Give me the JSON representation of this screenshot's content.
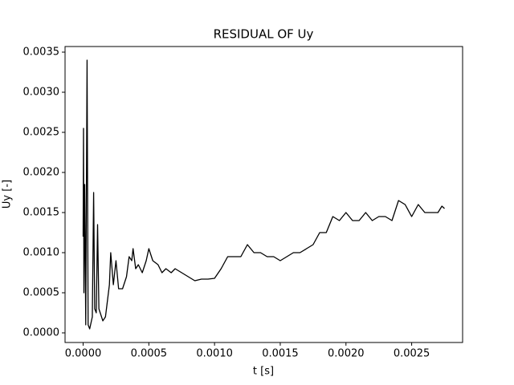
{
  "chart_data": {
    "type": "line",
    "title": "RESIDUAL OF Uy",
    "x_label": "t [s]",
    "y_label": "Uy [-]",
    "color": "#000000",
    "grid": false,
    "x": [
      0,
      3e-06,
      6e-06,
      1.2e-05,
      2e-05,
      3e-05,
      3.8e-05,
      5e-05,
      7e-05,
      8e-05,
      8.8e-05,
      0.0001,
      0.00011,
      0.00012,
      0.00015,
      0.00017,
      0.0002,
      0.00021,
      0.00023,
      0.00025,
      0.00027,
      0.0003,
      0.00033,
      0.00035,
      0.00037,
      0.00038,
      0.0004,
      0.00042,
      0.00045,
      0.00048,
      0.0005,
      0.00053,
      0.00057,
      0.0006,
      0.00063,
      0.00067,
      0.0007,
      0.00075,
      0.0008,
      0.00085,
      0.0009,
      0.00095,
      0.001,
      0.00105,
      0.0011,
      0.00115,
      0.0012,
      0.00125,
      0.0013,
      0.00135,
      0.0014,
      0.00145,
      0.0015,
      0.00155,
      0.0016,
      0.00165,
      0.0017,
      0.00175,
      0.0018,
      0.00185,
      0.0019,
      0.00195,
      0.002,
      0.00205,
      0.0021,
      0.00215,
      0.0022,
      0.00225,
      0.0023,
      0.00235,
      0.0024,
      0.00245,
      0.0025,
      0.00255,
      0.0026,
      0.00265,
      0.0027,
      0.00273,
      0.00275
    ],
    "values": [
      0.0012,
      0.00255,
      0.0005,
      0.00185,
      0.0001,
      0.0034,
      0.0001,
      5e-05,
      0.0002,
      0.00175,
      0.0003,
      0.00025,
      0.00135,
      0.0003,
      0.00015,
      0.0002,
      0.0006,
      0.001,
      0.0006,
      0.0009,
      0.00055,
      0.00055,
      0.0007,
      0.00095,
      0.0009,
      0.00105,
      0.0008,
      0.00085,
      0.00075,
      0.0009,
      0.00105,
      0.0009,
      0.00085,
      0.00075,
      0.0008,
      0.00075,
      0.0008,
      0.00075,
      0.0007,
      0.00065,
      0.00067,
      0.00067,
      0.00068,
      0.0008,
      0.00095,
      0.00095,
      0.00095,
      0.0011,
      0.001,
      0.001,
      0.00095,
      0.00095,
      0.0009,
      0.00095,
      0.001,
      0.001,
      0.00105,
      0.0011,
      0.00125,
      0.00125,
      0.00145,
      0.0014,
      0.0015,
      0.0014,
      0.0014,
      0.0015,
      0.0014,
      0.00145,
      0.00145,
      0.0014,
      0.00165,
      0.0016,
      0.00145,
      0.0016,
      0.0015,
      0.0015,
      0.0015,
      0.00158,
      0.00155
    ],
    "xlim": [
      -0.0001375,
      0.0028875
    ],
    "xticks": [
      {
        "value": 0,
        "label": "0.0000"
      },
      {
        "value": 0.0005,
        "label": "0.0005"
      },
      {
        "value": 0.001,
        "label": "0.0010"
      },
      {
        "value": 0.0015,
        "label": "0.0015"
      },
      {
        "value": 0.002,
        "label": "0.0020"
      },
      {
        "value": 0.0025,
        "label": "0.0025"
      }
    ],
    "ylim": [
      -0.00012,
      0.00357
    ],
    "yticks": [
      {
        "value": 0,
        "label": "0.0000"
      },
      {
        "value": 0.0005,
        "label": "0.0005"
      },
      {
        "value": 0.001,
        "label": "0.0010"
      },
      {
        "value": 0.0015,
        "label": "0.0015"
      },
      {
        "value": 0.002,
        "label": "0.0020"
      },
      {
        "value": 0.0025,
        "label": "0.0025"
      },
      {
        "value": 0.003,
        "label": "0.0030"
      },
      {
        "value": 0.0035,
        "label": "0.0035"
      }
    ]
  }
}
